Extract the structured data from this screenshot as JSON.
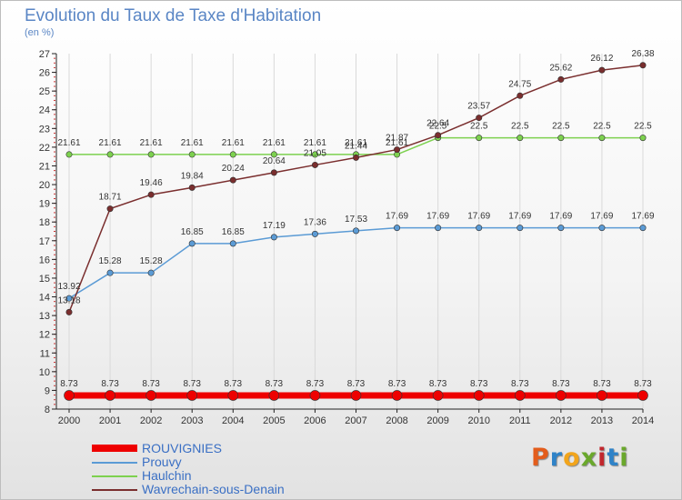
{
  "title": "Evolution du Taux de Taxe d'Habitation",
  "unit": "(en %)",
  "brand": {
    "letters": [
      "P",
      "r",
      "o",
      "x",
      "i",
      "t",
      "i"
    ],
    "colors": [
      "#e35d1c",
      "#2f83c8",
      "#f2a51c",
      "#6aa82c",
      "#c1272d",
      "#2f83c8",
      "#6aa82c"
    ]
  },
  "chart_data": {
    "type": "line",
    "x": [
      2000,
      2001,
      2002,
      2003,
      2004,
      2005,
      2006,
      2007,
      2008,
      2009,
      2010,
      2011,
      2012,
      2013,
      2014
    ],
    "ylim": [
      8,
      27
    ],
    "yticks": [
      8,
      9,
      10,
      11,
      12,
      13,
      14,
      15,
      16,
      17,
      18,
      19,
      20,
      21,
      22,
      23,
      24,
      25,
      26,
      27
    ],
    "grid": "vertical",
    "legend_position": "bottom-left",
    "series": [
      {
        "name": "ROUVIGNIES",
        "color": "#ee0000",
        "width": 7,
        "values": [
          8.73,
          8.73,
          8.73,
          8.73,
          8.73,
          8.73,
          8.73,
          8.73,
          8.73,
          8.73,
          8.73,
          8.73,
          8.73,
          8.73,
          8.73
        ],
        "labels": [
          "8.73",
          "8.73",
          "8.73",
          "8.73",
          "8.73",
          "8.73",
          "8.73",
          "8.73",
          "8.73",
          "8.73",
          "8.73",
          "8.73",
          "8.73",
          "8.73",
          "8.73"
        ]
      },
      {
        "name": "Prouvy",
        "color": "#5b9bd5",
        "width": 1.5,
        "values": [
          13.92,
          15.28,
          15.28,
          16.85,
          16.85,
          17.19,
          17.36,
          17.53,
          17.69,
          17.69,
          17.69,
          17.69,
          17.69,
          17.69,
          17.69
        ],
        "labels": [
          "13.92",
          "15.28",
          "15.28",
          "16.85",
          "16.85",
          "17.19",
          "17.36",
          "17.53",
          "17.69",
          "17.69",
          "17.69",
          "17.69",
          "17.69",
          "17.69",
          "17.69"
        ]
      },
      {
        "name": "Haulchin",
        "color": "#7dd14f",
        "width": 1.5,
        "values": [
          21.61,
          21.61,
          21.61,
          21.61,
          21.61,
          21.61,
          21.61,
          21.61,
          21.61,
          22.5,
          22.5,
          22.5,
          22.5,
          22.5,
          22.5
        ],
        "labels": [
          "21.61",
          "21.61",
          "21.61",
          "21.61",
          "21.61",
          "21.61",
          "21.61",
          "21.61",
          "21.61",
          "22.5",
          "22.5",
          "22.5",
          "22.5",
          "22.5",
          "22.5"
        ]
      },
      {
        "name": "Wavrechain-sous-Denain",
        "color": "#7a2e2e",
        "width": 1.5,
        "values": [
          13.18,
          18.71,
          19.46,
          19.84,
          20.24,
          20.64,
          21.05,
          21.44,
          21.87,
          22.64,
          23.57,
          24.75,
          25.62,
          26.12,
          26.38
        ],
        "labels": [
          "13.18",
          "18.71",
          "19.46",
          "19.84",
          "20.24",
          "20.64",
          "21.05",
          "21.44",
          "21.87",
          "22.64",
          "23.57",
          "24.75",
          "25.62",
          "26.12",
          "26.38"
        ]
      }
    ]
  }
}
